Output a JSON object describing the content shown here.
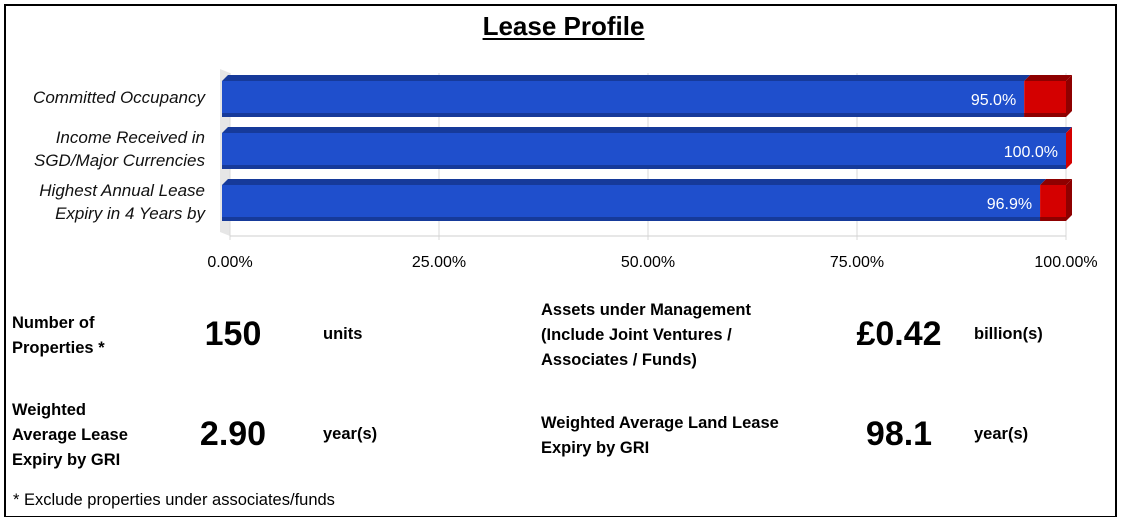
{
  "title": "Lease Profile",
  "chart_data": {
    "type": "bar",
    "orientation": "horizontal",
    "stacked": true,
    "xlim": [
      0,
      100
    ],
    "tick_labels": [
      "0.00%",
      "25.00%",
      "50.00%",
      "75.00%",
      "100.00%"
    ],
    "categories": [
      "Committed Occupancy",
      "Income Received in SGD/Major Currencies",
      "Highest Annual Lease Expiry in 4 Years by"
    ],
    "category_lines": [
      [
        "Committed Occupancy"
      ],
      [
        "Income Received in",
        "SGD/Major Currencies"
      ],
      [
        "Highest Annual Lease",
        "Expiry in 4 Years by"
      ]
    ],
    "values": [
      95.0,
      100.0,
      96.9
    ],
    "value_labels": [
      "95.0%",
      "100.0%",
      "96.9%"
    ],
    "colors": {
      "primary": "#1f4fcc",
      "primary_dark": "#163a9a",
      "remainder": "#d40000",
      "remainder_dark": "#8e0000"
    }
  },
  "stats": {
    "properties": {
      "label_lines": [
        "Number of",
        "Properties *"
      ],
      "value": "150",
      "unit": "units"
    },
    "aum": {
      "label_lines": [
        "Assets under Management",
        "(Include Joint Ventures /",
        "Associates / Funds)"
      ],
      "value": "£0.42",
      "unit": "billion(s)"
    },
    "wale": {
      "label_lines": [
        "Weighted",
        "Average Lease",
        "Expiry by GRI"
      ],
      "value": "2.90",
      "unit": "year(s)"
    },
    "walle": {
      "label_lines": [
        "Weighted Average Land Lease",
        "Expiry by GRI"
      ],
      "value": "98.1",
      "unit": "year(s)"
    }
  },
  "footnote": "* Exclude properties under associates/funds"
}
